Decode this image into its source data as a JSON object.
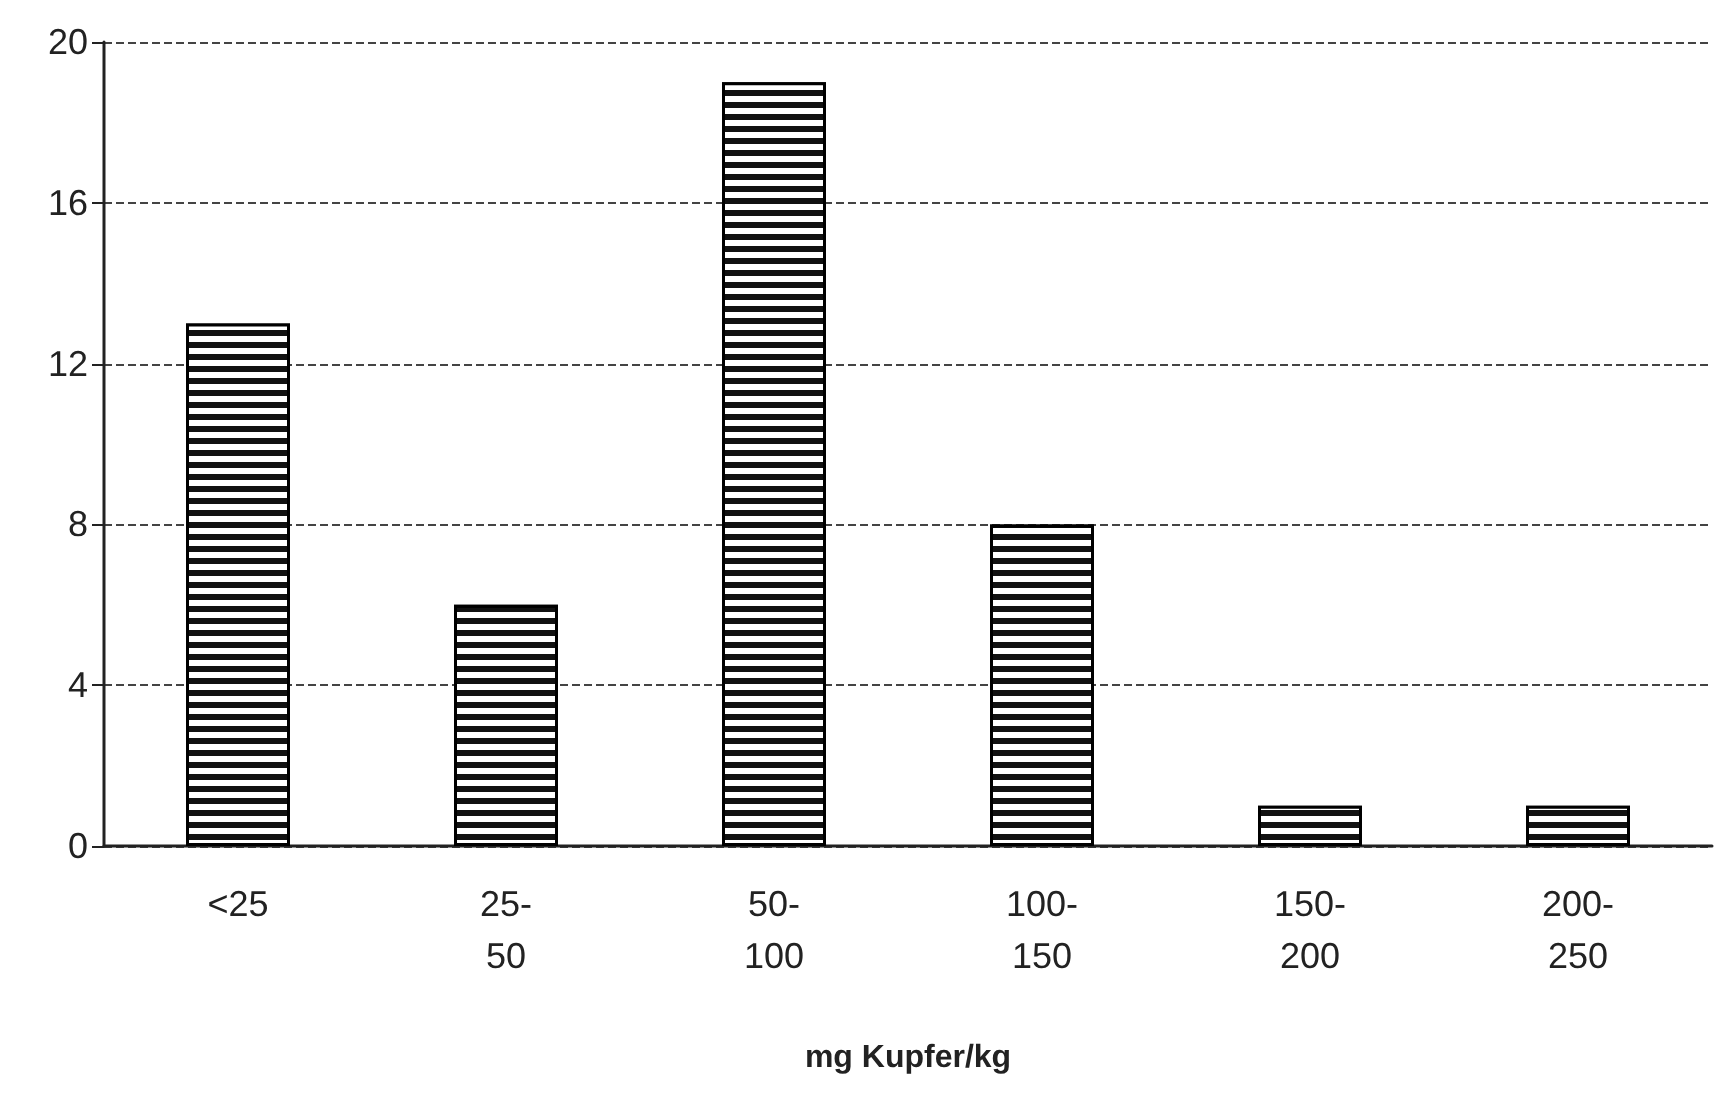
{
  "chart_data": {
    "type": "bar",
    "xlabel": "mg Kupfer/kg",
    "categories": [
      "<25",
      "25-50",
      "50-100",
      "100-150",
      "150-200",
      "200-250"
    ],
    "values": [
      13,
      6,
      19,
      8,
      1,
      1
    ],
    "color": "#111111",
    "ylim": [
      0,
      20
    ],
    "yticks": [
      0,
      4,
      8,
      12,
      16,
      20
    ],
    "grid": "y"
  }
}
